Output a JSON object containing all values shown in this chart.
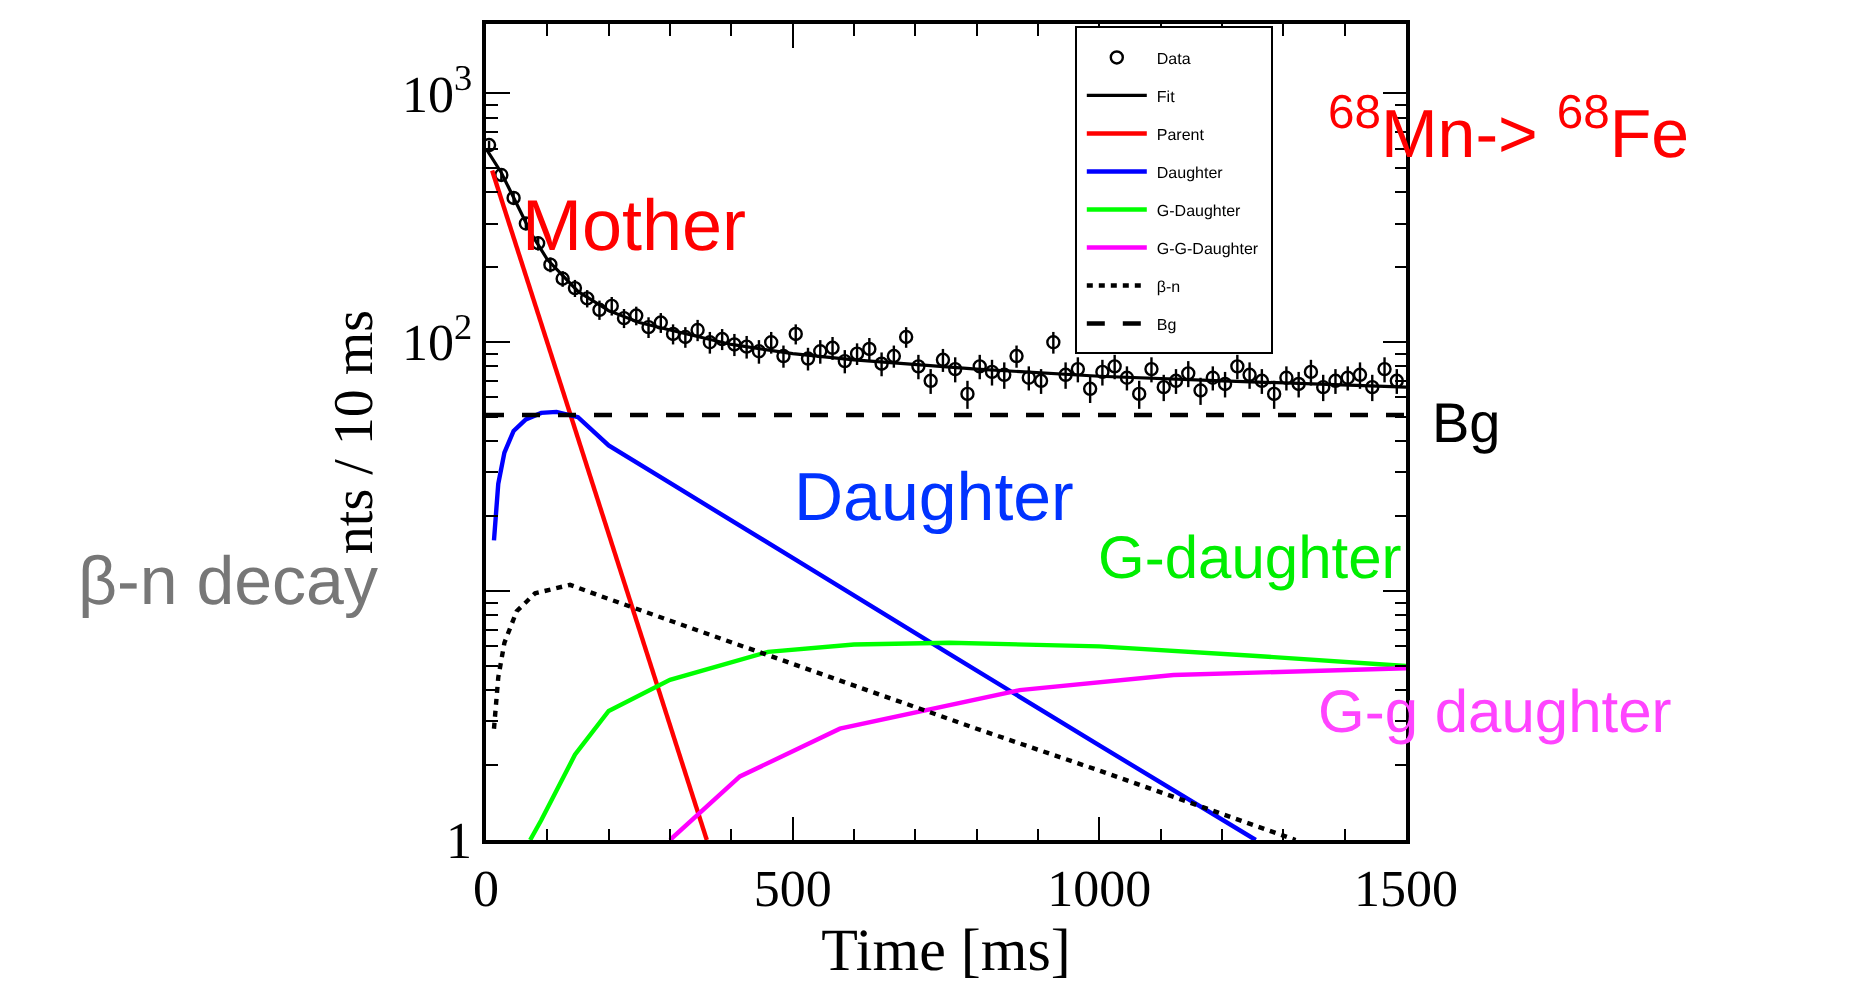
{
  "chart_data": {
    "type": "scatter",
    "xlabel": "Time [ms]",
    "ylabel": "nts / 10 ms",
    "xlim": [
      0,
      1500
    ],
    "xticks": [
      0,
      500,
      1000,
      1500
    ],
    "ylim": [
      1,
      1900
    ],
    "yticks": [
      {
        "value": 1,
        "label": "1"
      },
      {
        "value": 10,
        "label": null
      },
      {
        "value": 100,
        "label": "10$^{2}$"
      },
      {
        "value": 1000,
        "label": "10$^{3}$"
      }
    ],
    "log": "y",
    "grid": false,
    "legend": "top right",
    "series": [
      {
        "name": "Data",
        "marker": "circle",
        "color": "#000000",
        "x": [
          5,
          25,
          45,
          65,
          85,
          105,
          125,
          145,
          165,
          185,
          205,
          225,
          245,
          265,
          285,
          305,
          325,
          345,
          365,
          385,
          405,
          425,
          445,
          465,
          485,
          505,
          525,
          545,
          565,
          585,
          605,
          625,
          645,
          665,
          685,
          705,
          725,
          745,
          765,
          785,
          805,
          825,
          845,
          865,
          885,
          905,
          925,
          945,
          965,
          985,
          1005,
          1025,
          1045,
          1065,
          1085,
          1105,
          1125,
          1145,
          1165,
          1185,
          1205,
          1225,
          1245,
          1265,
          1285,
          1305,
          1325,
          1345,
          1365,
          1385,
          1405,
          1425,
          1445,
          1465,
          1485
        ],
        "values": [
          620,
          470,
          380,
          300,
          250,
          205,
          180,
          165,
          150,
          135,
          140,
          125,
          128,
          115,
          120,
          108,
          105,
          112,
          100,
          103,
          98,
          96,
          92,
          100,
          88,
          108,
          86,
          92,
          95,
          84,
          90,
          94,
          82,
          88,
          105,
          80,
          70,
          85,
          78,
          62,
          80,
          76,
          74,
          88,
          72,
          70,
          100,
          74,
          78,
          65,
          76,
          80,
          72,
          62,
          78,
          66,
          70,
          75,
          64,
          72,
          68,
          80,
          74,
          70,
          62,
          72,
          68,
          76,
          66,
          70,
          72,
          74,
          66,
          78,
          70
        ],
        "errors": [
          25,
          22,
          19,
          17,
          16,
          14,
          13,
          13,
          12,
          12,
          12,
          11,
          11,
          11,
          11,
          10,
          10,
          11,
          10,
          10,
          10,
          10,
          10,
          10,
          9,
          10,
          9,
          10,
          10,
          9,
          9,
          10,
          9,
          9,
          10,
          9,
          8,
          9,
          9,
          8,
          9,
          9,
          9,
          9,
          8,
          8,
          10,
          9,
          9,
          8,
          9,
          9,
          8,
          8,
          9,
          8,
          8,
          9,
          8,
          8,
          8,
          9,
          9,
          8,
          8,
          8,
          8,
          9,
          8,
          8,
          8,
          9,
          8,
          9,
          8
        ]
      },
      {
        "name": "Fit",
        "type": "line",
        "color": "#000000",
        "line_style": "solid",
        "x": [
          0,
          25,
          50,
          75,
          100,
          150,
          200,
          250,
          300,
          400,
          500,
          600,
          800,
          1000,
          1200,
          1500
        ],
        "values": [
          600,
          480,
          360,
          270,
          215,
          160,
          134,
          120,
          112,
          98,
          90,
          85,
          78,
          73,
          70,
          66
        ]
      },
      {
        "name": "Parent",
        "type": "line",
        "color": "#ff0000",
        "line_style": "solid",
        "x": [
          10,
          360
        ],
        "values": [
          490,
          1
        ]
      },
      {
        "name": "Daughter",
        "type": "line",
        "color": "#0000ff",
        "line_style": "solid",
        "x": [
          13,
          20,
          30,
          45,
          65,
          90,
          115,
          150,
          200,
          300,
          500,
          750,
          1000,
          1255
        ],
        "values": [
          16,
          27,
          36,
          44,
          49,
          52,
          52.5,
          50,
          38.5,
          27.2,
          13.6,
          5.7,
          2.4,
          1
        ]
      },
      {
        "name": "G-Daughter",
        "type": "line",
        "color": "#00ff00",
        "line_style": "solid",
        "x": [
          72,
          90,
          145,
          200,
          300,
          460,
          600,
          756,
          1000,
          1250,
          1500
        ],
        "values": [
          1,
          1.2,
          2.2,
          3.3,
          4.4,
          5.7,
          6.1,
          6.2,
          6.0,
          5.5,
          5.0
        ]
      },
      {
        "name": "G-G-Daughter",
        "type": "line",
        "color": "#ff00ff",
        "line_style": "solid",
        "x": [
          300,
          414,
          577,
          870,
          1121,
          1500
        ],
        "values": [
          1,
          1.8,
          2.8,
          4.0,
          4.6,
          4.9
        ]
      },
      {
        "name": "β-n",
        "type": "line",
        "color": "#000000",
        "line_style": "dotted",
        "x": [
          13,
          20,
          30,
          50,
          80,
          137,
          200,
          500,
          800,
          1000,
          1320
        ],
        "values": [
          2.8,
          4.5,
          6.2,
          8.3,
          9.8,
          10.6,
          9.3,
          5.1,
          2.8,
          1.9,
          1
        ]
      },
      {
        "name": "Bg",
        "type": "line",
        "color": "#000000",
        "line_style": "dashed",
        "x": [
          0,
          1500
        ],
        "values": [
          51,
          51
        ]
      }
    ],
    "annotations": [
      "Mother",
      "Daughter",
      "G-daughter",
      "$^{68}$Mn-> $^{68}$Fe",
      "Bg",
      "β-n decay",
      "G-g daughter"
    ]
  }
}
